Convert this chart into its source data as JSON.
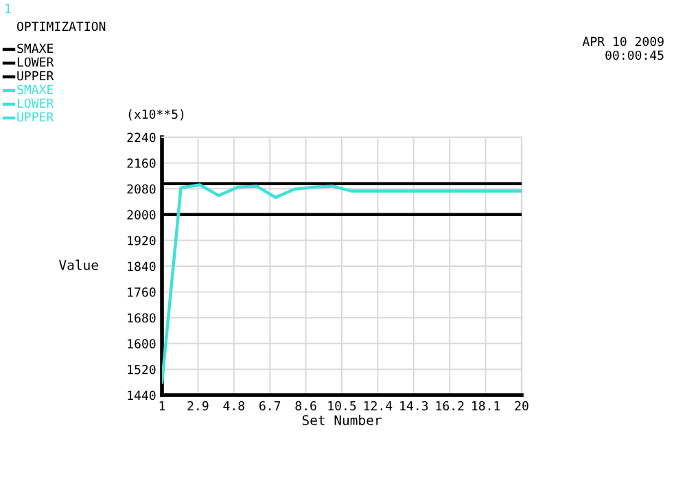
{
  "chart_data": {
    "type": "line",
    "title": "OPTIMIZATION",
    "xlabel": "Set Number",
    "ylabel": "Value",
    "annotations": [
      "1",
      "(x10**5)",
      "APR 10 2009",
      "00:00:45"
    ],
    "x": [
      1,
      2,
      3,
      4,
      5,
      6,
      7,
      8,
      9,
      10,
      11,
      12,
      13,
      14,
      15,
      16,
      17,
      18,
      19,
      20
    ],
    "series": [
      {
        "name": "SMAXE",
        "color": "#000000",
        "values": [
          null,
          null,
          null,
          null,
          null,
          null,
          null,
          null,
          null,
          null,
          null,
          null,
          null,
          null,
          null,
          null,
          null,
          null,
          null,
          null
        ]
      },
      {
        "name": "LOWER",
        "color": "#000000",
        "values": [
          2000,
          2000,
          2000,
          2000,
          2000,
          2000,
          2000,
          2000,
          2000,
          2000,
          2000,
          2000,
          2000,
          2000,
          2000,
          2000,
          2000,
          2000,
          2000,
          2000
        ]
      },
      {
        "name": "UPPER",
        "color": "#000000",
        "values": [
          2096,
          2096,
          2096,
          2096,
          2096,
          2096,
          2096,
          2096,
          2096,
          2096,
          2096,
          2096,
          2096,
          2096,
          2096,
          2096,
          2096,
          2096,
          2096,
          2096
        ]
      },
      {
        "name": "SMAXE",
        "color": "#40e0d8",
        "values": [
          1480,
          2083,
          2092,
          2059,
          2085,
          2088,
          2053,
          2079,
          2085,
          2088,
          2073,
          2073,
          2073,
          2073,
          2073,
          2073,
          2073,
          2073,
          2073,
          2073
        ]
      },
      {
        "name": "LOWER",
        "color": "#40e0d8",
        "values": [
          null,
          null,
          null,
          null,
          null,
          null,
          null,
          null,
          null,
          null,
          null,
          null,
          null,
          null,
          null,
          null,
          null,
          null,
          null,
          null
        ]
      },
      {
        "name": "UPPER",
        "color": "#40e0d8",
        "values": [
          null,
          null,
          null,
          null,
          null,
          null,
          null,
          null,
          null,
          null,
          null,
          null,
          null,
          null,
          null,
          null,
          null,
          null,
          null,
          null
        ]
      }
    ],
    "xlim": [
      1,
      20
    ],
    "ylim": [
      1440,
      2240
    ],
    "xticks": [
      1,
      2.9,
      4.8,
      6.7,
      8.6,
      10.5,
      12.4,
      14.3,
      16.2,
      18.1,
      20
    ],
    "yticks": [
      1440,
      1520,
      1600,
      1680,
      1760,
      1840,
      1920,
      2000,
      2080,
      2160,
      2240
    ],
    "grid": true,
    "legend": "top left",
    "marker": "none",
    "line_style": "solid"
  }
}
